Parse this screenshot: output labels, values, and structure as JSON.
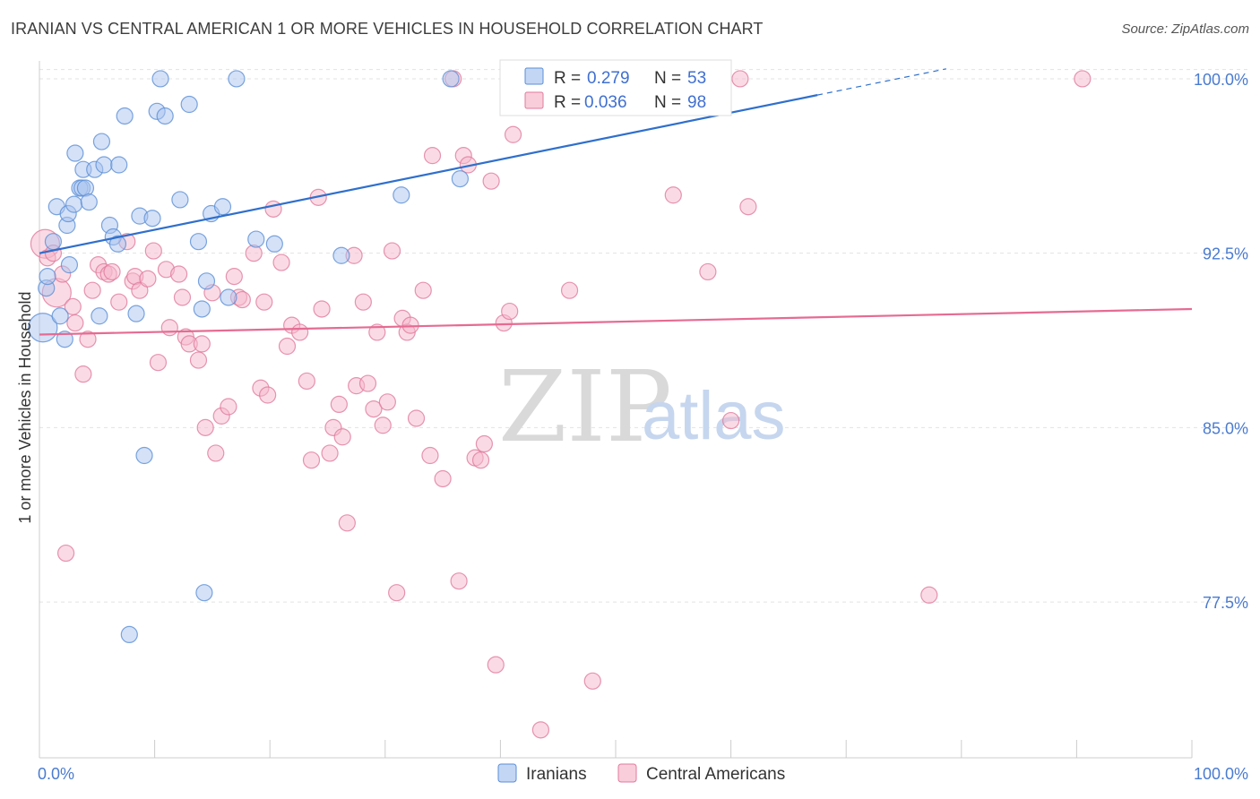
{
  "title": "IRANIAN VS CENTRAL AMERICAN 1 OR MORE VEHICLES IN HOUSEHOLD CORRELATION CHART",
  "source": "Source: ZipAtlas.com",
  "watermark": {
    "zip": "ZIP",
    "atlas": "atlas"
  },
  "colors": {
    "iranians_fill": "#a9c4ef",
    "iranians_stroke": "#5b8ed6",
    "iranians_line": "#2f6fcc",
    "central_fill": "#f6b8cb",
    "central_stroke": "#e07a9c",
    "central_line": "#e56b93",
    "tick_label": "#4a7bd0",
    "grid": "#e3e3e3"
  },
  "legend_top": {
    "rows": [
      {
        "r_label": "R =",
        "r_value": "0.279",
        "n_label": "N =",
        "n_value": "53"
      },
      {
        "r_label": "R =",
        "r_value": "0.036",
        "n_label": "N =",
        "n_value": "98"
      }
    ]
  },
  "chart_data": {
    "type": "scatter",
    "title": "IRANIAN VS CENTRAL AMERICAN 1 OR MORE VEHICLES IN HOUSEHOLD CORRELATION CHART",
    "xlabel": "",
    "ylabel": "1 or more Vehicles in Household",
    "xlim": [
      0,
      100
    ],
    "ylim": [
      70.8,
      101.0
    ],
    "x_tick_labels": [
      "0.0%",
      "100.0%"
    ],
    "y_ticks": [
      100.0,
      92.5,
      85.0,
      77.5
    ],
    "y_tick_labels": [
      "100.0%",
      "92.5%",
      "85.0%",
      "77.5%"
    ],
    "grid": true,
    "legend_position": "bottom-center",
    "series": [
      {
        "name": "Iranians",
        "r": 0.279,
        "n": 53,
        "trend": {
          "x0": 0,
          "y0": 92.5,
          "x1": 67.5,
          "y1": 99.3,
          "dash_to_x": 67.5,
          "dash_end_x": 67.5
        },
        "points": [
          [
            0.3,
            89.3
          ],
          [
            0.6,
            91.0
          ],
          [
            0.7,
            91.5
          ],
          [
            1.2,
            93.0
          ],
          [
            1.5,
            94.5
          ],
          [
            1.8,
            89.8
          ],
          [
            2.2,
            88.8
          ],
          [
            2.4,
            93.7
          ],
          [
            2.5,
            94.2
          ],
          [
            2.6,
            92.0
          ],
          [
            3.0,
            94.6
          ],
          [
            3.1,
            96.8
          ],
          [
            3.5,
            95.3
          ],
          [
            3.7,
            95.3
          ],
          [
            3.8,
            96.1
          ],
          [
            4.0,
            95.3
          ],
          [
            4.3,
            94.7
          ],
          [
            4.8,
            96.1
          ],
          [
            5.2,
            89.8
          ],
          [
            5.4,
            97.3
          ],
          [
            5.6,
            96.3
          ],
          [
            6.1,
            93.7
          ],
          [
            6.4,
            93.2
          ],
          [
            6.8,
            92.9
          ],
          [
            6.9,
            96.3
          ],
          [
            7.4,
            98.4
          ],
          [
            7.8,
            76.1
          ],
          [
            8.4,
            89.9
          ],
          [
            8.7,
            94.1
          ],
          [
            9.1,
            83.8
          ],
          [
            9.8,
            94.0
          ],
          [
            10.2,
            98.6
          ],
          [
            10.5,
            100.0
          ],
          [
            10.9,
            98.4
          ],
          [
            12.2,
            94.8
          ],
          [
            13.0,
            98.9
          ],
          [
            13.8,
            93.0
          ],
          [
            14.1,
            90.1
          ],
          [
            14.3,
            77.9
          ],
          [
            14.5,
            91.3
          ],
          [
            14.9,
            94.2
          ],
          [
            15.9,
            94.5
          ],
          [
            16.4,
            90.6
          ],
          [
            17.1,
            100.0
          ],
          [
            18.8,
            93.1
          ],
          [
            20.4,
            92.9
          ],
          [
            26.2,
            92.4
          ],
          [
            31.4,
            95.0
          ],
          [
            35.7,
            100.0
          ],
          [
            36.5,
            95.7
          ],
          [
            52.5,
            100.0
          ],
          [
            53.0,
            99.0
          ],
          [
            57.0,
            100.0
          ]
        ]
      },
      {
        "name": "Central Americans",
        "r": 0.036,
        "n": 98,
        "trend": {
          "x0": 0,
          "y0": 89.0,
          "x1": 100,
          "y1": 90.1
        },
        "points": [
          [
            0.5,
            92.9
          ],
          [
            0.7,
            92.3
          ],
          [
            1.2,
            92.5
          ],
          [
            1.5,
            90.8
          ],
          [
            2.0,
            91.6
          ],
          [
            2.3,
            79.6
          ],
          [
            2.9,
            90.2
          ],
          [
            3.1,
            89.5
          ],
          [
            3.8,
            87.3
          ],
          [
            4.2,
            88.8
          ],
          [
            4.6,
            90.9
          ],
          [
            5.1,
            92.0
          ],
          [
            5.6,
            91.7
          ],
          [
            6.0,
            91.6
          ],
          [
            6.3,
            91.7
          ],
          [
            6.9,
            90.4
          ],
          [
            7.6,
            93.0
          ],
          [
            8.1,
            91.3
          ],
          [
            8.3,
            91.5
          ],
          [
            8.7,
            90.9
          ],
          [
            9.4,
            91.4
          ],
          [
            9.9,
            92.6
          ],
          [
            10.3,
            87.8
          ],
          [
            11.0,
            91.8
          ],
          [
            11.3,
            89.3
          ],
          [
            12.1,
            91.6
          ],
          [
            12.4,
            90.6
          ],
          [
            12.7,
            88.9
          ],
          [
            13.0,
            88.6
          ],
          [
            13.8,
            87.9
          ],
          [
            14.1,
            88.6
          ],
          [
            14.4,
            85.0
          ],
          [
            15.0,
            90.8
          ],
          [
            15.3,
            83.9
          ],
          [
            15.8,
            85.5
          ],
          [
            16.4,
            85.9
          ],
          [
            16.9,
            91.5
          ],
          [
            17.3,
            90.6
          ],
          [
            17.6,
            90.5
          ],
          [
            18.6,
            92.5
          ],
          [
            19.2,
            86.7
          ],
          [
            19.5,
            90.4
          ],
          [
            19.8,
            86.4
          ],
          [
            20.3,
            94.4
          ],
          [
            21.0,
            92.1
          ],
          [
            21.5,
            88.5
          ],
          [
            21.9,
            89.4
          ],
          [
            22.6,
            89.1
          ],
          [
            23.2,
            87.0
          ],
          [
            23.6,
            83.6
          ],
          [
            24.2,
            94.9
          ],
          [
            24.5,
            90.1
          ],
          [
            25.2,
            83.9
          ],
          [
            25.5,
            85.0
          ],
          [
            26.0,
            86.0
          ],
          [
            26.3,
            84.6
          ],
          [
            26.7,
            80.9
          ],
          [
            27.3,
            92.4
          ],
          [
            27.5,
            86.8
          ],
          [
            28.1,
            90.4
          ],
          [
            28.5,
            86.9
          ],
          [
            29.0,
            85.8
          ],
          [
            29.3,
            89.1
          ],
          [
            29.8,
            85.1
          ],
          [
            30.2,
            86.1
          ],
          [
            30.6,
            92.6
          ],
          [
            31.0,
            77.9
          ],
          [
            31.5,
            89.7
          ],
          [
            31.9,
            89.1
          ],
          [
            32.2,
            89.4
          ],
          [
            32.7,
            85.4
          ],
          [
            33.3,
            90.9
          ],
          [
            33.9,
            83.8
          ],
          [
            34.1,
            96.7
          ],
          [
            35.0,
            82.8
          ],
          [
            35.9,
            100.0
          ],
          [
            36.4,
            78.4
          ],
          [
            36.8,
            96.7
          ],
          [
            37.2,
            96.3
          ],
          [
            37.8,
            83.7
          ],
          [
            38.3,
            83.6
          ],
          [
            38.6,
            84.3
          ],
          [
            39.2,
            95.6
          ],
          [
            39.6,
            74.8
          ],
          [
            40.3,
            89.5
          ],
          [
            40.8,
            90.0
          ],
          [
            41.1,
            97.6
          ],
          [
            43.5,
            72.0
          ],
          [
            46.0,
            90.9
          ],
          [
            48.0,
            74.1
          ],
          [
            49.5,
            100.0
          ],
          [
            55.0,
            95.0
          ],
          [
            58.0,
            91.7
          ],
          [
            60.0,
            85.3
          ],
          [
            60.8,
            100.0
          ],
          [
            61.5,
            94.5
          ],
          [
            77.2,
            77.8
          ],
          [
            90.5,
            100.0
          ]
        ]
      }
    ]
  },
  "legend_bottom": {
    "items": [
      "Iranians",
      "Central Americans"
    ]
  }
}
